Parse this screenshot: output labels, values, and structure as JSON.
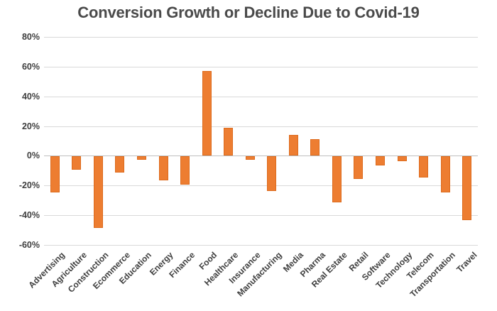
{
  "chart_data": {
    "type": "bar",
    "title": "Conversion Growth or Decline Due to Covid-19",
    "categories": [
      "Advertising",
      "Agriculture",
      "Construction",
      "Ecommerce",
      "Education",
      "Energy",
      "Finance",
      "Food",
      "Healthcare",
      "Insurance",
      "Manufacturing",
      "Media",
      "Pharma",
      "Real Estate",
      "Retail",
      "Software",
      "Technology",
      "Telecom",
      "Transportation",
      "Travel"
    ],
    "values": [
      -24,
      -9,
      -48,
      -11,
      -2,
      -16,
      -19,
      57,
      19,
      -2,
      -23,
      14,
      11,
      -31,
      -15,
      -6,
      -3,
      -14,
      -24,
      -43
    ],
    "value_unit": "%",
    "ylim": [
      -60,
      80
    ],
    "ytick_step": 20,
    "ytick_labels": [
      "80%",
      "60%",
      "40%",
      "20%",
      "0%",
      "-20%",
      "-40%",
      "-60%"
    ],
    "grid": true,
    "legend": "none",
    "xlabel": "",
    "ylabel": "",
    "colors": {
      "bar_fill": "#ED7D31",
      "bar_border": "#DD6B1D",
      "gridline": "#D9D9D9",
      "zero_axis": "#BFBFBF",
      "tick_text": "#3F3F3F",
      "title_text": "#4A4A4A",
      "background": "#FFFFFF"
    }
  }
}
